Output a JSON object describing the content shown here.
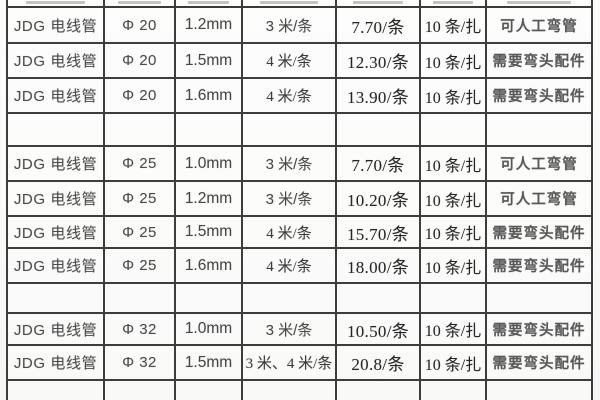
{
  "table": {
    "rows": [
      {
        "product": "JDG 电线管",
        "diameter": "Φ 20",
        "thickness": "1.2mm",
        "length": "3 米/条",
        "price": "7.70/条",
        "bundle": "10 条/扎",
        "note": "可人工弯管"
      },
      {
        "product": "JDG 电线管",
        "diameter": "Φ 20",
        "thickness": "1.5mm",
        "length": "4 米/条",
        "price": "12.30/条",
        "bundle": "10 条/扎",
        "note": "需要弯头配件"
      },
      {
        "product": "JDG 电线管",
        "diameter": "Φ 20",
        "thickness": "1.6mm",
        "length": "4 米/条",
        "price": "13.90/条",
        "bundle": "10 条/扎",
        "note": "需要弯头配件"
      },
      {
        "product": "",
        "diameter": "",
        "thickness": "",
        "length": "",
        "price": "",
        "bundle": "",
        "note": ""
      },
      {
        "product": "JDG 电线管",
        "diameter": "Φ 25",
        "thickness": "1.0mm",
        "length": "3 米/条",
        "price": "7.70/条",
        "bundle": "10 条/扎",
        "note": "可人工弯管"
      },
      {
        "product": "JDG 电线管",
        "diameter": "Φ 25",
        "thickness": "1.2mm",
        "length": "3 米/条",
        "price": "10.20/条",
        "bundle": "10 条/扎",
        "note": "可人工弯管"
      },
      {
        "product": "JDG 电线管",
        "diameter": "Φ 25",
        "thickness": "1.5mm",
        "length": "4 米/条",
        "price": "15.70/条",
        "bundle": "10 条/扎",
        "note": "需要弯头配件"
      },
      {
        "product": "JDG 电线管",
        "diameter": "Φ 25",
        "thickness": "1.6mm",
        "length": "4 米/条",
        "price": "18.00/条",
        "bundle": "10 条/扎",
        "note": "需要弯头配件"
      },
      {
        "product": "",
        "diameter": "",
        "thickness": "",
        "length": "",
        "price": "",
        "bundle": "",
        "note": ""
      },
      {
        "product": "JDG 电线管",
        "diameter": "Φ 32",
        "thickness": "1.0mm",
        "length": "3 米/条",
        "price": "10.50/条",
        "bundle": "10 条/扎",
        "note": "需要弯头配件"
      },
      {
        "product": "JDG 电线管",
        "diameter": "Φ 32",
        "thickness": "1.5mm",
        "length": "3 米、4 米/条",
        "price": "20.8/条",
        "bundle": "10 条/扎",
        "note": "需要弯头配件"
      },
      {
        "product": "",
        "diameter": "",
        "thickness": "",
        "length": "",
        "price": "",
        "bundle": "",
        "note": ""
      }
    ]
  }
}
